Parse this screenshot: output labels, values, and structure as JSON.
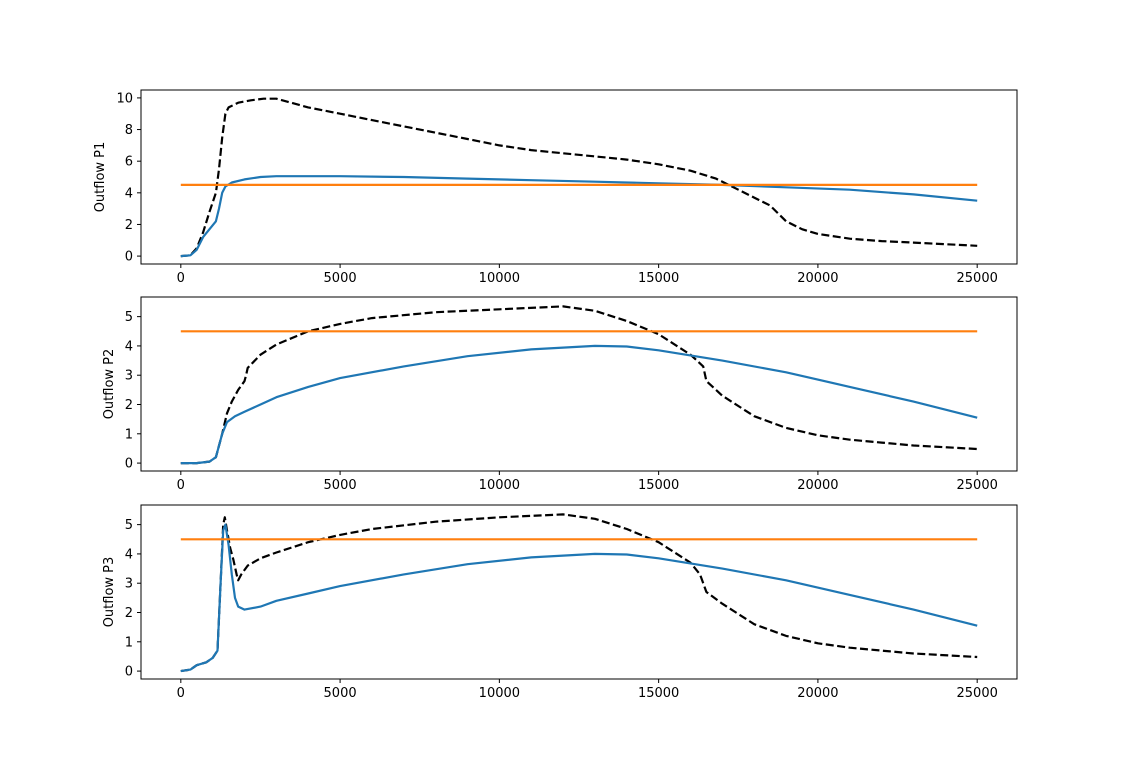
{
  "chart_data": [
    {
      "type": "line",
      "ylabel": "Outflow P1",
      "xlim": [
        -1250,
        26250
      ],
      "ylim": [
        -0.5,
        10.5
      ],
      "xticks": [
        0,
        5000,
        10000,
        15000,
        20000,
        25000
      ],
      "yticks": [
        0,
        2,
        4,
        6,
        8,
        10
      ],
      "grid": false,
      "series": [
        {
          "color": "#000000",
          "dash": "dashed",
          "points": [
            [
              0,
              0
            ],
            [
              300,
              0.05
            ],
            [
              500,
              0.5
            ],
            [
              700,
              1.5
            ],
            [
              900,
              2.8
            ],
            [
              1100,
              4.0
            ],
            [
              1200,
              5.5
            ],
            [
              1300,
              7.5
            ],
            [
              1400,
              9.0
            ],
            [
              1500,
              9.4
            ],
            [
              1800,
              9.7
            ],
            [
              2200,
              9.85
            ],
            [
              2600,
              9.95
            ],
            [
              3000,
              9.95
            ],
            [
              4000,
              9.4
            ],
            [
              5000,
              9.0
            ],
            [
              6000,
              8.6
            ],
            [
              7000,
              8.2
            ],
            [
              8000,
              7.8
            ],
            [
              9000,
              7.4
            ],
            [
              10000,
              7.0
            ],
            [
              11000,
              6.7
            ],
            [
              12000,
              6.5
            ],
            [
              13000,
              6.3
            ],
            [
              14000,
              6.1
            ],
            [
              15000,
              5.8
            ],
            [
              16000,
              5.4
            ],
            [
              16800,
              4.9
            ],
            [
              17500,
              4.2
            ],
            [
              18000,
              3.7
            ],
            [
              18500,
              3.2
            ],
            [
              19000,
              2.2
            ],
            [
              19500,
              1.7
            ],
            [
              20000,
              1.4
            ],
            [
              21000,
              1.1
            ],
            [
              22000,
              0.95
            ],
            [
              23000,
              0.85
            ],
            [
              24000,
              0.75
            ],
            [
              25000,
              0.65
            ]
          ]
        },
        {
          "color": "#1f77b4",
          "dash": "solid",
          "points": [
            [
              0,
              0
            ],
            [
              300,
              0.05
            ],
            [
              500,
              0.4
            ],
            [
              700,
              1.2
            ],
            [
              900,
              1.7
            ],
            [
              1100,
              2.2
            ],
            [
              1200,
              3.0
            ],
            [
              1300,
              4.0
            ],
            [
              1400,
              4.4
            ],
            [
              1600,
              4.65
            ],
            [
              2000,
              4.85
            ],
            [
              2500,
              5.0
            ],
            [
              3000,
              5.05
            ],
            [
              5000,
              5.05
            ],
            [
              7000,
              5.0
            ],
            [
              9000,
              4.9
            ],
            [
              11000,
              4.8
            ],
            [
              13000,
              4.7
            ],
            [
              15000,
              4.6
            ],
            [
              17000,
              4.5
            ],
            [
              19000,
              4.35
            ],
            [
              21000,
              4.2
            ],
            [
              23000,
              3.9
            ],
            [
              25000,
              3.5
            ]
          ]
        },
        {
          "color": "#ff7f0e",
          "dash": "solid",
          "points": [
            [
              0,
              4.5
            ],
            [
              25000,
              4.5
            ]
          ]
        }
      ]
    },
    {
      "type": "line",
      "ylabel": "Outflow P2",
      "xlim": [
        -1250,
        26250
      ],
      "ylim": [
        -0.27,
        5.67
      ],
      "xticks": [
        0,
        5000,
        10000,
        15000,
        20000,
        25000
      ],
      "yticks": [
        0,
        1,
        2,
        3,
        4,
        5
      ],
      "grid": false,
      "series": [
        {
          "color": "#000000",
          "dash": "dashed",
          "points": [
            [
              0,
              0
            ],
            [
              500,
              0
            ],
            [
              900,
              0.05
            ],
            [
              1100,
              0.2
            ],
            [
              1300,
              1.0
            ],
            [
              1450,
              1.7
            ],
            [
              1600,
              2.1
            ],
            [
              1800,
              2.5
            ],
            [
              2000,
              2.8
            ],
            [
              2050,
              3.0
            ],
            [
              2100,
              3.25
            ],
            [
              2500,
              3.7
            ],
            [
              3000,
              4.05
            ],
            [
              4000,
              4.5
            ],
            [
              5000,
              4.75
            ],
            [
              6000,
              4.95
            ],
            [
              8000,
              5.15
            ],
            [
              10000,
              5.25
            ],
            [
              12000,
              5.35
            ],
            [
              13000,
              5.2
            ],
            [
              14000,
              4.85
            ],
            [
              15000,
              4.4
            ],
            [
              16000,
              3.7
            ],
            [
              16400,
              3.3
            ],
            [
              16500,
              2.8
            ],
            [
              17000,
              2.3
            ],
            [
              18000,
              1.6
            ],
            [
              19000,
              1.2
            ],
            [
              20000,
              0.95
            ],
            [
              21000,
              0.8
            ],
            [
              22000,
              0.7
            ],
            [
              23000,
              0.6
            ],
            [
              25000,
              0.48
            ]
          ]
        },
        {
          "color": "#1f77b4",
          "dash": "solid",
          "points": [
            [
              0,
              0
            ],
            [
              500,
              0
            ],
            [
              900,
              0.05
            ],
            [
              1100,
              0.2
            ],
            [
              1300,
              1.0
            ],
            [
              1450,
              1.4
            ],
            [
              1700,
              1.6
            ],
            [
              2000,
              1.75
            ],
            [
              2500,
              2.0
            ],
            [
              3000,
              2.25
            ],
            [
              4000,
              2.6
            ],
            [
              5000,
              2.9
            ],
            [
              7000,
              3.3
            ],
            [
              9000,
              3.65
            ],
            [
              11000,
              3.88
            ],
            [
              13000,
              4.0
            ],
            [
              14000,
              3.98
            ],
            [
              15000,
              3.85
            ],
            [
              17000,
              3.5
            ],
            [
              19000,
              3.1
            ],
            [
              21000,
              2.6
            ],
            [
              23000,
              2.1
            ],
            [
              25000,
              1.55
            ]
          ]
        },
        {
          "color": "#ff7f0e",
          "dash": "solid",
          "points": [
            [
              0,
              4.5
            ],
            [
              25000,
              4.5
            ]
          ]
        }
      ]
    },
    {
      "type": "line",
      "ylabel": "Outflow P3",
      "xlim": [
        -1250,
        26250
      ],
      "ylim": [
        -0.27,
        5.67
      ],
      "xticks": [
        0,
        5000,
        10000,
        15000,
        20000,
        25000
      ],
      "yticks": [
        0,
        1,
        2,
        3,
        4,
        5
      ],
      "grid": false,
      "series": [
        {
          "color": "#000000",
          "dash": "dashed",
          "points": [
            [
              0,
              0
            ],
            [
              300,
              0.05
            ],
            [
              500,
              0.2
            ],
            [
              800,
              0.3
            ],
            [
              1000,
              0.45
            ],
            [
              1150,
              0.7
            ],
            [
              1250,
              3.0
            ],
            [
              1330,
              5.0
            ],
            [
              1380,
              5.25
            ],
            [
              1450,
              4.8
            ],
            [
              1550,
              4.2
            ],
            [
              1650,
              3.8
            ],
            [
              1750,
              3.3
            ],
            [
              1800,
              3.1
            ],
            [
              1900,
              3.3
            ],
            [
              2100,
              3.6
            ],
            [
              2500,
              3.85
            ],
            [
              3000,
              4.05
            ],
            [
              4000,
              4.4
            ],
            [
              5000,
              4.65
            ],
            [
              6000,
              4.85
            ],
            [
              8000,
              5.1
            ],
            [
              10000,
              5.25
            ],
            [
              12000,
              5.35
            ],
            [
              13000,
              5.2
            ],
            [
              14000,
              4.85
            ],
            [
              15000,
              4.4
            ],
            [
              16000,
              3.7
            ],
            [
              16300,
              3.3
            ],
            [
              16500,
              2.7
            ],
            [
              17000,
              2.3
            ],
            [
              18000,
              1.6
            ],
            [
              19000,
              1.2
            ],
            [
              20000,
              0.95
            ],
            [
              21000,
              0.8
            ],
            [
              22000,
              0.7
            ],
            [
              23000,
              0.6
            ],
            [
              25000,
              0.48
            ]
          ]
        },
        {
          "color": "#1f77b4",
          "dash": "solid",
          "points": [
            [
              0,
              0
            ],
            [
              300,
              0.05
            ],
            [
              500,
              0.2
            ],
            [
              800,
              0.3
            ],
            [
              1000,
              0.45
            ],
            [
              1150,
              0.7
            ],
            [
              1250,
              3.0
            ],
            [
              1330,
              4.8
            ],
            [
              1400,
              5.0
            ],
            [
              1500,
              4.3
            ],
            [
              1600,
              3.3
            ],
            [
              1700,
              2.5
            ],
            [
              1800,
              2.2
            ],
            [
              2000,
              2.1
            ],
            [
              2500,
              2.2
            ],
            [
              3000,
              2.4
            ],
            [
              4000,
              2.65
            ],
            [
              5000,
              2.9
            ],
            [
              7000,
              3.3
            ],
            [
              9000,
              3.65
            ],
            [
              11000,
              3.88
            ],
            [
              13000,
              4.0
            ],
            [
              14000,
              3.98
            ],
            [
              15000,
              3.85
            ],
            [
              17000,
              3.5
            ],
            [
              19000,
              3.1
            ],
            [
              21000,
              2.6
            ],
            [
              23000,
              2.1
            ],
            [
              25000,
              1.55
            ]
          ]
        },
        {
          "color": "#ff7f0e",
          "dash": "solid",
          "points": [
            [
              0,
              4.5
            ],
            [
              25000,
              4.5
            ]
          ]
        }
      ]
    }
  ]
}
